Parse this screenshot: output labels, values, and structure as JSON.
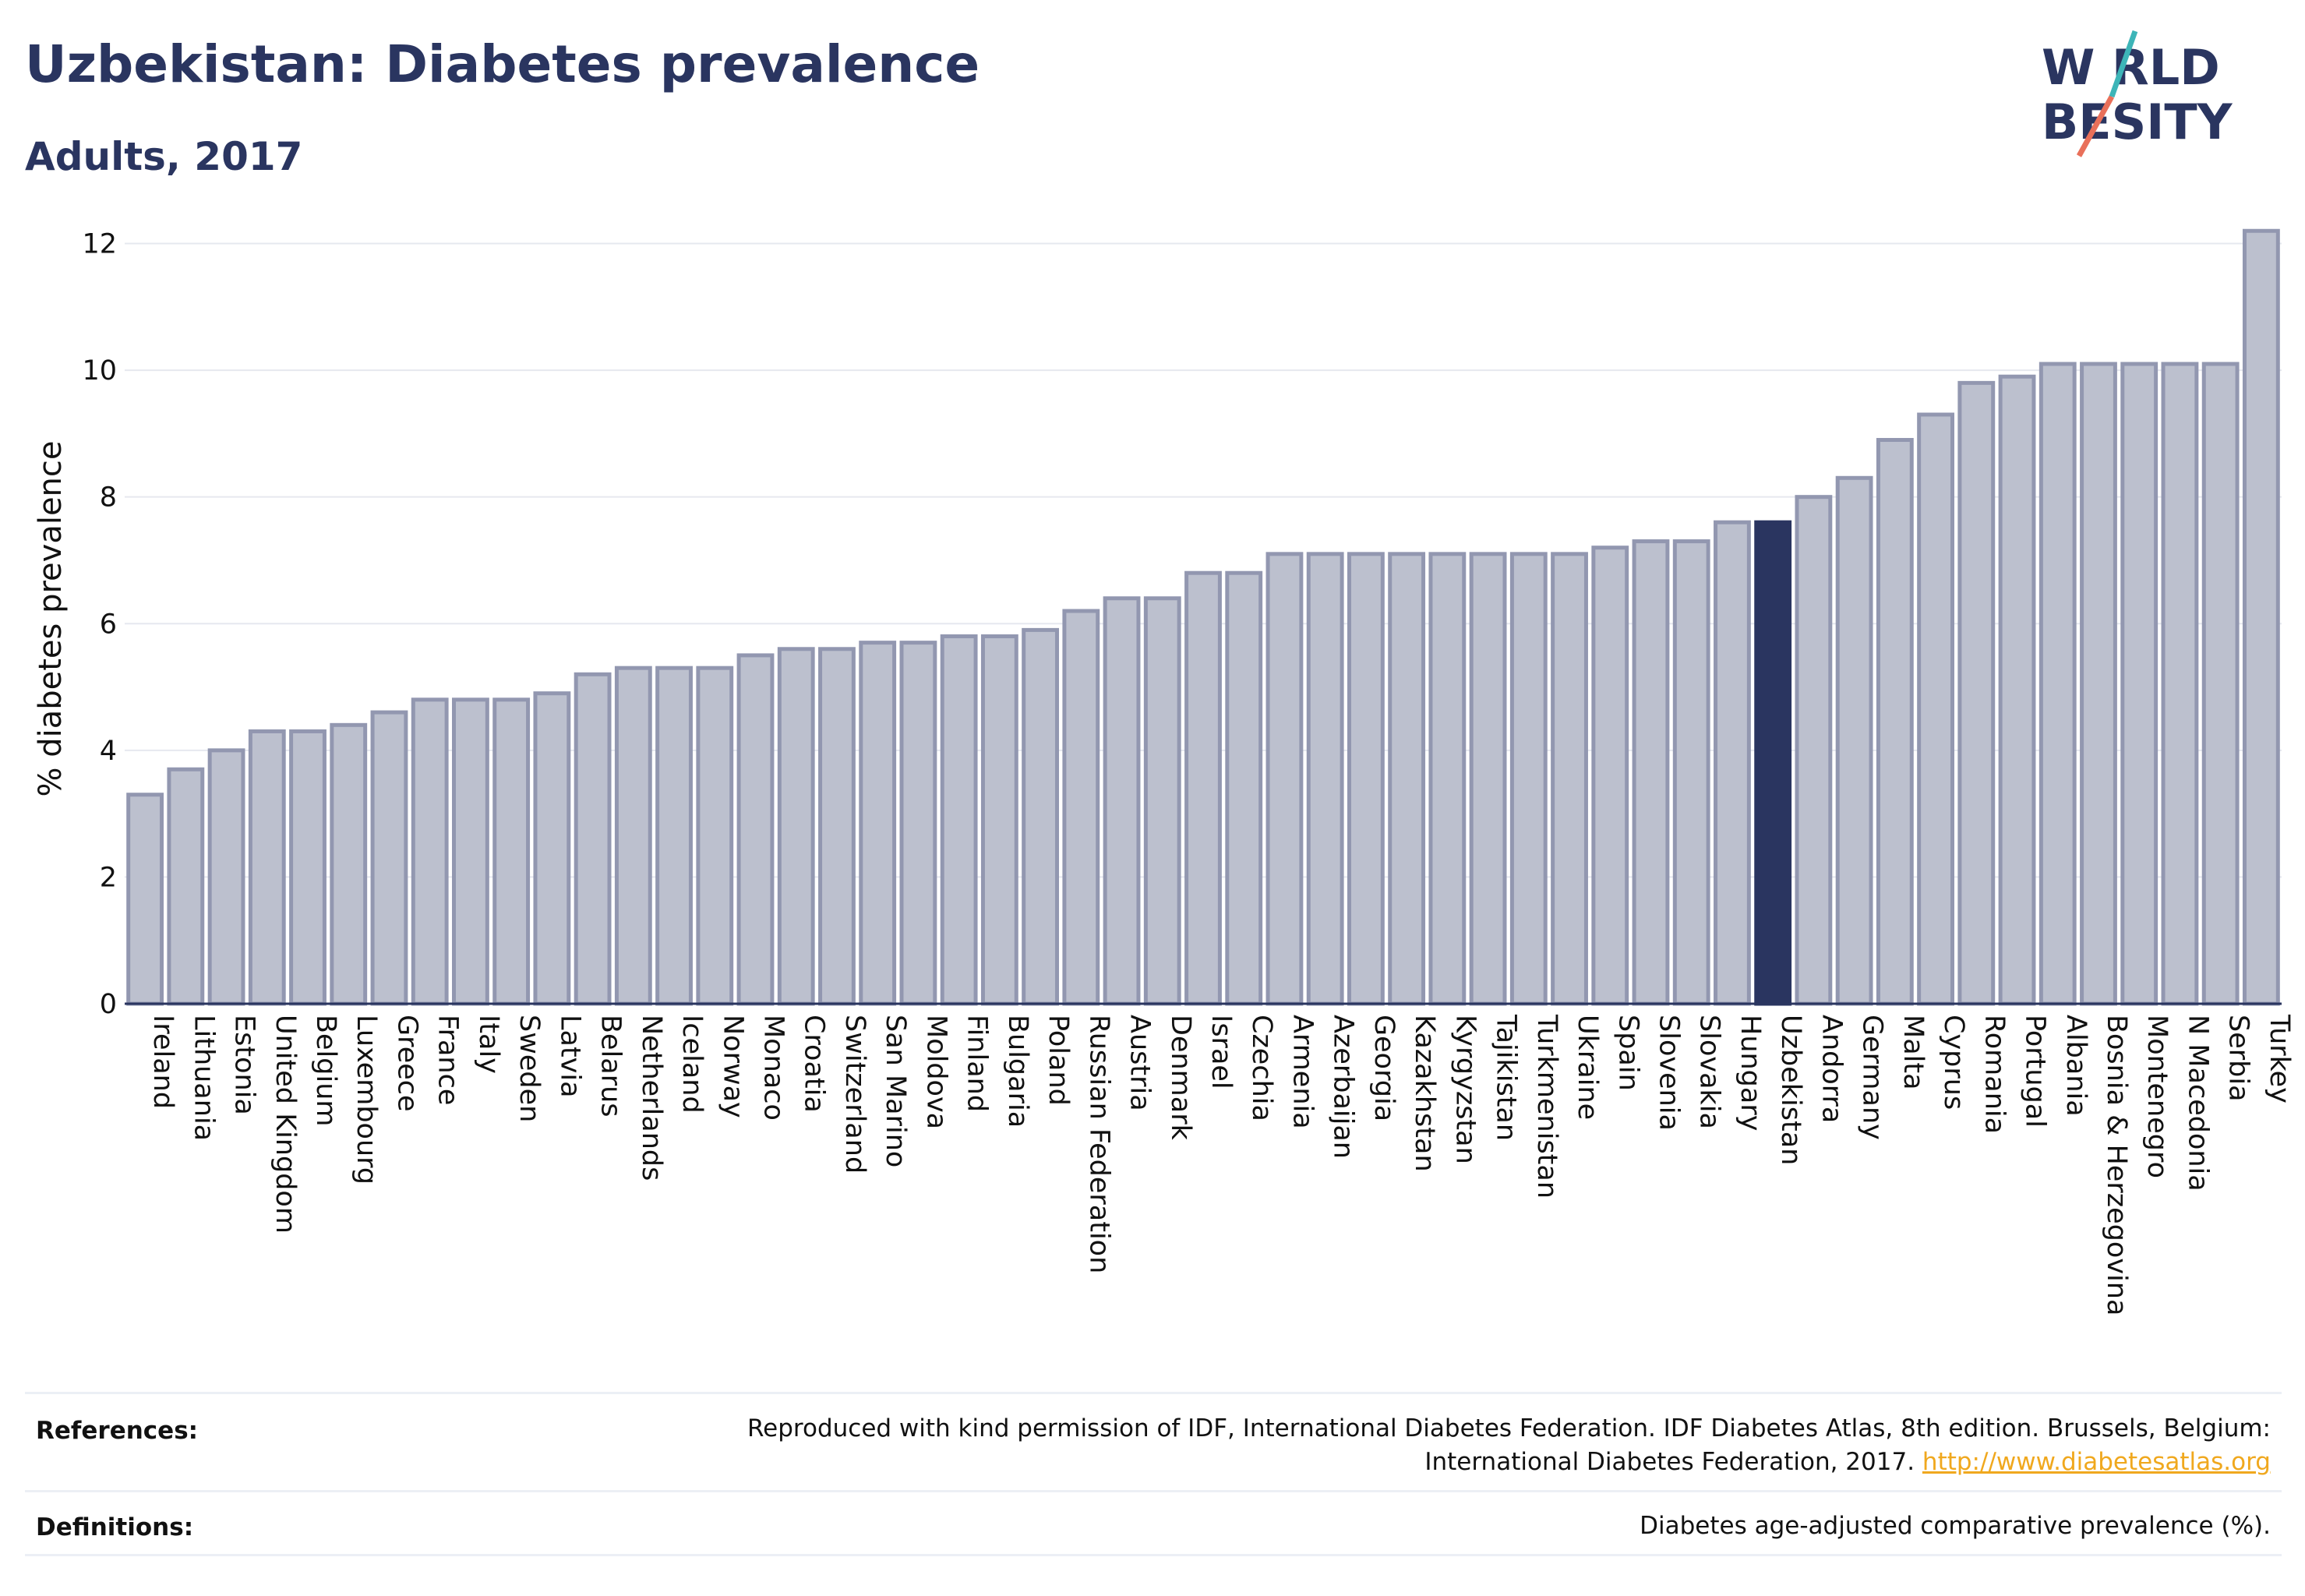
{
  "header": {
    "title": "Uzbekistan: Diabetes prevalence",
    "subtitle": "Adults, 2017"
  },
  "logo": {
    "line1": "W RLD",
    "line2": "BESITY",
    "colors": {
      "navy": "#2a3560",
      "teal": "#3db5b8",
      "coral": "#e9705a"
    }
  },
  "chart_data": {
    "type": "bar",
    "title": "Uzbekistan: Diabetes prevalence",
    "subtitle": "Adults, 2017",
    "ylabel": "% diabetes prevalence",
    "xlabel": "",
    "ylim": [
      0,
      12.4
    ],
    "yticks": [
      0,
      2,
      4,
      6,
      8,
      10,
      12
    ],
    "grid": true,
    "highlight": "Uzbekistan",
    "colors": {
      "bar": "#bcc0ce",
      "bar_edge": "#9297b0",
      "highlight": "#2a3560"
    },
    "categories": [
      "Ireland",
      "Lithuania",
      "Estonia",
      "United Kingdom",
      "Belgium",
      "Luxembourg",
      "Greece",
      "France",
      "Italy",
      "Sweden",
      "Latvia",
      "Belarus",
      "Netherlands",
      "Iceland",
      "Norway",
      "Monaco",
      "Croatia",
      "Switzerland",
      "San Marino",
      "Moldova",
      "Finland",
      "Bulgaria",
      "Poland",
      "Russian Federation",
      "Austria",
      "Denmark",
      "Israel",
      "Czechia",
      "Armenia",
      "Azerbaijan",
      "Georgia",
      "Kazakhstan",
      "Kyrgyzstan",
      "Tajikistan",
      "Turkmenistan",
      "Ukraine",
      "Spain",
      "Slovenia",
      "Slovakia",
      "Hungary",
      "Uzbekistan",
      "Andorra",
      "Germany",
      "Malta",
      "Cyprus",
      "Romania",
      "Portugal",
      "Albania",
      "Bosnia & Herzegovina",
      "Montenegro",
      "N Macedonia",
      "Serbia",
      "Turkey"
    ],
    "values": [
      3.3,
      3.7,
      4.0,
      4.3,
      4.3,
      4.4,
      4.6,
      4.8,
      4.8,
      4.8,
      4.9,
      5.2,
      5.3,
      5.3,
      5.3,
      5.5,
      5.6,
      5.6,
      5.7,
      5.7,
      5.8,
      5.8,
      5.9,
      6.2,
      6.4,
      6.4,
      6.8,
      6.8,
      7.1,
      7.1,
      7.1,
      7.1,
      7.1,
      7.1,
      7.1,
      7.1,
      7.2,
      7.3,
      7.3,
      7.6,
      7.6,
      8.0,
      8.3,
      8.9,
      9.3,
      9.8,
      9.9,
      10.1,
      10.1,
      10.1,
      10.1,
      10.1,
      12.2
    ]
  },
  "footer": {
    "references_label": "References:",
    "references_text": "Reproduced with kind permission of IDF, International Diabetes Federation. IDF Diabetes Atlas, 8th edition. Brussels, Belgium:",
    "references_text2": "International Diabetes Federation, 2017.",
    "references_link": "http://www.diabetesatlas.org",
    "definitions_label": "Definitions:",
    "definitions_text": "Diabetes age-adjusted comparative prevalence (%)."
  }
}
